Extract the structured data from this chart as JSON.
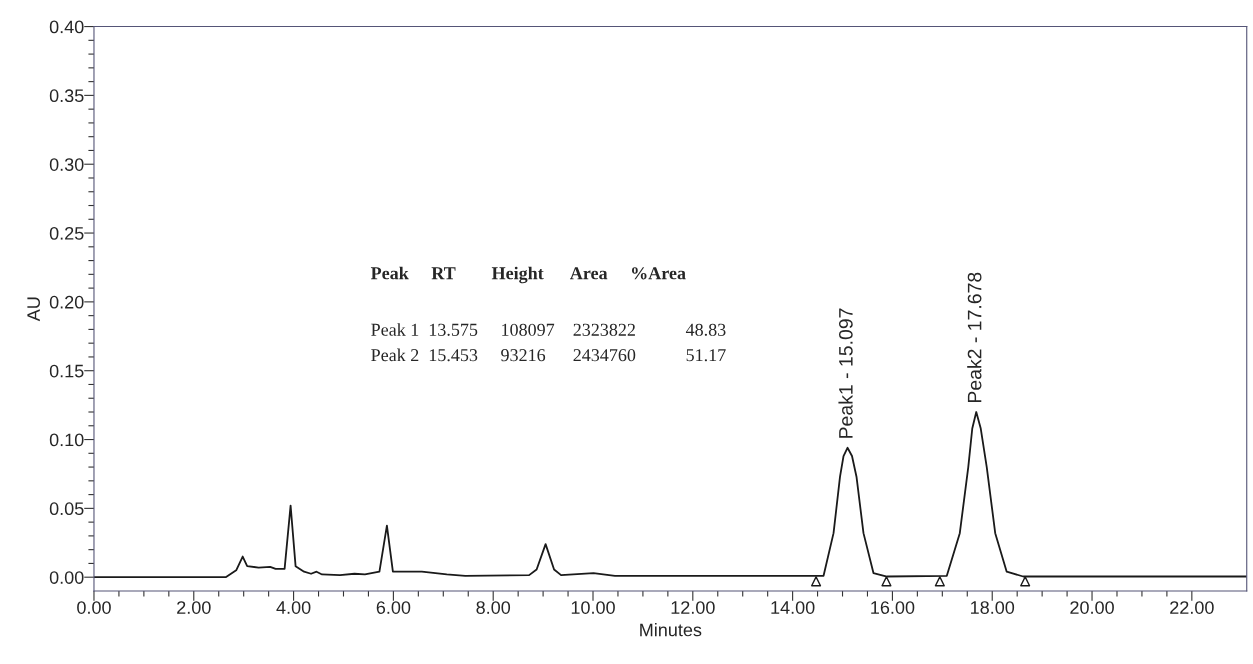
{
  "chart_data": {
    "type": "line",
    "xlabel": "Minutes",
    "ylabel": "AU",
    "xlim": [
      0,
      23.1
    ],
    "ylim": [
      -0.01,
      0.4
    ],
    "xticks": [
      {
        "value": 0,
        "label": "0.00"
      },
      {
        "value": 0.5,
        "label": null
      },
      {
        "value": 1,
        "label": null
      },
      {
        "value": 1.5,
        "label": null
      },
      {
        "value": 2,
        "label": "2.00"
      },
      {
        "value": 2.5,
        "label": null
      },
      {
        "value": 3,
        "label": null
      },
      {
        "value": 3.5,
        "label": null
      },
      {
        "value": 4,
        "label": "4.00"
      },
      {
        "value": 4.5,
        "label": null
      },
      {
        "value": 5,
        "label": null
      },
      {
        "value": 5.5,
        "label": null
      },
      {
        "value": 6,
        "label": "6.00"
      },
      {
        "value": 6.5,
        "label": null
      },
      {
        "value": 7,
        "label": null
      },
      {
        "value": 7.5,
        "label": null
      },
      {
        "value": 8,
        "label": "8.00"
      },
      {
        "value": 8.5,
        "label": null
      },
      {
        "value": 9,
        "label": null
      },
      {
        "value": 9.5,
        "label": null
      },
      {
        "value": 10,
        "label": "10.00"
      },
      {
        "value": 10.5,
        "label": null
      },
      {
        "value": 11,
        "label": null
      },
      {
        "value": 11.5,
        "label": null
      },
      {
        "value": 12,
        "label": "12.00"
      },
      {
        "value": 12.5,
        "label": null
      },
      {
        "value": 13,
        "label": null
      },
      {
        "value": 13.5,
        "label": null
      },
      {
        "value": 14,
        "label": "14.00"
      },
      {
        "value": 14.5,
        "label": null
      },
      {
        "value": 15,
        "label": null
      },
      {
        "value": 15.5,
        "label": null
      },
      {
        "value": 16,
        "label": "16.00"
      },
      {
        "value": 16.5,
        "label": null
      },
      {
        "value": 17,
        "label": null
      },
      {
        "value": 17.5,
        "label": null
      },
      {
        "value": 18,
        "label": "18.00"
      },
      {
        "value": 18.5,
        "label": null
      },
      {
        "value": 19,
        "label": null
      },
      {
        "value": 19.5,
        "label": null
      },
      {
        "value": 20,
        "label": "20.00"
      },
      {
        "value": 20.5,
        "label": null
      },
      {
        "value": 21,
        "label": null
      },
      {
        "value": 21.5,
        "label": null
      },
      {
        "value": 22,
        "label": "22.00"
      }
    ],
    "yticks": [
      {
        "value": 0,
        "label": "0.00"
      },
      {
        "value": 0.01,
        "label": null
      },
      {
        "value": 0.02,
        "label": null
      },
      {
        "value": 0.03,
        "label": null
      },
      {
        "value": 0.04,
        "label": null
      },
      {
        "value": 0.05,
        "label": "0.05"
      },
      {
        "value": 0.06,
        "label": null
      },
      {
        "value": 0.07,
        "label": null
      },
      {
        "value": 0.08,
        "label": null
      },
      {
        "value": 0.09,
        "label": null
      },
      {
        "value": 0.1,
        "label": "0.10"
      },
      {
        "value": 0.11,
        "label": null
      },
      {
        "value": 0.12,
        "label": null
      },
      {
        "value": 0.13,
        "label": null
      },
      {
        "value": 0.14,
        "label": null
      },
      {
        "value": 0.15,
        "label": "0.15"
      },
      {
        "value": 0.16,
        "label": null
      },
      {
        "value": 0.17,
        "label": null
      },
      {
        "value": 0.18,
        "label": null
      },
      {
        "value": 0.19,
        "label": null
      },
      {
        "value": 0.2,
        "label": "0.20"
      },
      {
        "value": 0.21,
        "label": null
      },
      {
        "value": 0.22,
        "label": null
      },
      {
        "value": 0.23,
        "label": null
      },
      {
        "value": 0.24,
        "label": null
      },
      {
        "value": 0.25,
        "label": "0.25"
      },
      {
        "value": 0.26,
        "label": null
      },
      {
        "value": 0.27,
        "label": null
      },
      {
        "value": 0.28,
        "label": null
      },
      {
        "value": 0.29,
        "label": null
      },
      {
        "value": 0.3,
        "label": "0.30"
      },
      {
        "value": 0.31,
        "label": null
      },
      {
        "value": 0.32,
        "label": null
      },
      {
        "value": 0.33,
        "label": null
      },
      {
        "value": 0.34,
        "label": null
      },
      {
        "value": 0.35,
        "label": "0.35"
      },
      {
        "value": 0.36,
        "label": null
      },
      {
        "value": 0.37,
        "label": null
      },
      {
        "value": 0.38,
        "label": null
      },
      {
        "value": 0.39,
        "label": null
      },
      {
        "value": 0.4,
        "label": "0.40"
      }
    ],
    "grid": false,
    "series": [
      {
        "color": "#1a1a1a",
        "x": [
          0,
          2.64,
          2.85,
          2.98,
          3.07,
          3.3,
          3.53,
          3.64,
          3.82,
          3.94,
          4.04,
          4.21,
          4.35,
          4.46,
          4.57,
          4.93,
          5.22,
          5.43,
          5.72,
          5.87,
          5.99,
          6.57,
          7.07,
          7.44,
          8.72,
          8.87,
          9.05,
          9.22,
          9.36,
          10.01,
          10.44,
          14.62,
          14.82,
          14.95,
          15.02,
          15.1,
          15.19,
          15.28,
          15.42,
          15.62,
          15.89,
          17.09,
          17.35,
          17.52,
          17.6,
          17.68,
          17.77,
          17.89,
          18.06,
          18.29,
          18.62,
          23.1
        ],
        "values": [
          0,
          0,
          0.005,
          0.015,
          0.008,
          0.007,
          0.0075,
          0.006,
          0.006,
          0.052,
          0.008,
          0.004,
          0.0025,
          0.004,
          0.002,
          0.0015,
          0.0025,
          0.002,
          0.004,
          0.0374,
          0.004,
          0.004,
          0.002,
          0.001,
          0.0015,
          0.0056,
          0.024,
          0.0056,
          0.0015,
          0.003,
          0.001,
          0.001,
          0.032,
          0.073,
          0.088,
          0.094,
          0.088,
          0.073,
          0.032,
          0.003,
          0.0005,
          0.001,
          0.032,
          0.08,
          0.108,
          0.12,
          0.108,
          0.08,
          0.032,
          0.004,
          0.0005,
          0.0005
        ]
      },
      {
        "type": "scatter",
        "color": "#1a1a1a",
        "marker": "triangle",
        "x": [
          14.47,
          15.88,
          16.95,
          18.66
        ],
        "values": [
          -0.003,
          -0.003,
          -0.003,
          -0.003
        ]
      }
    ],
    "annotations": [
      {
        "text": "Peak1 - 15.097",
        "x": 15.1,
        "y": 0.094
      },
      {
        "text": "Peak2 - 17.678",
        "x": 17.68,
        "y": 0.12
      },
      "Peak     RT        Height      Area     %Area",
      "Peak 1  13.575     108097    2323822           48.83",
      "Peak 2  15.453     93216      2434760           51.17"
    ]
  }
}
